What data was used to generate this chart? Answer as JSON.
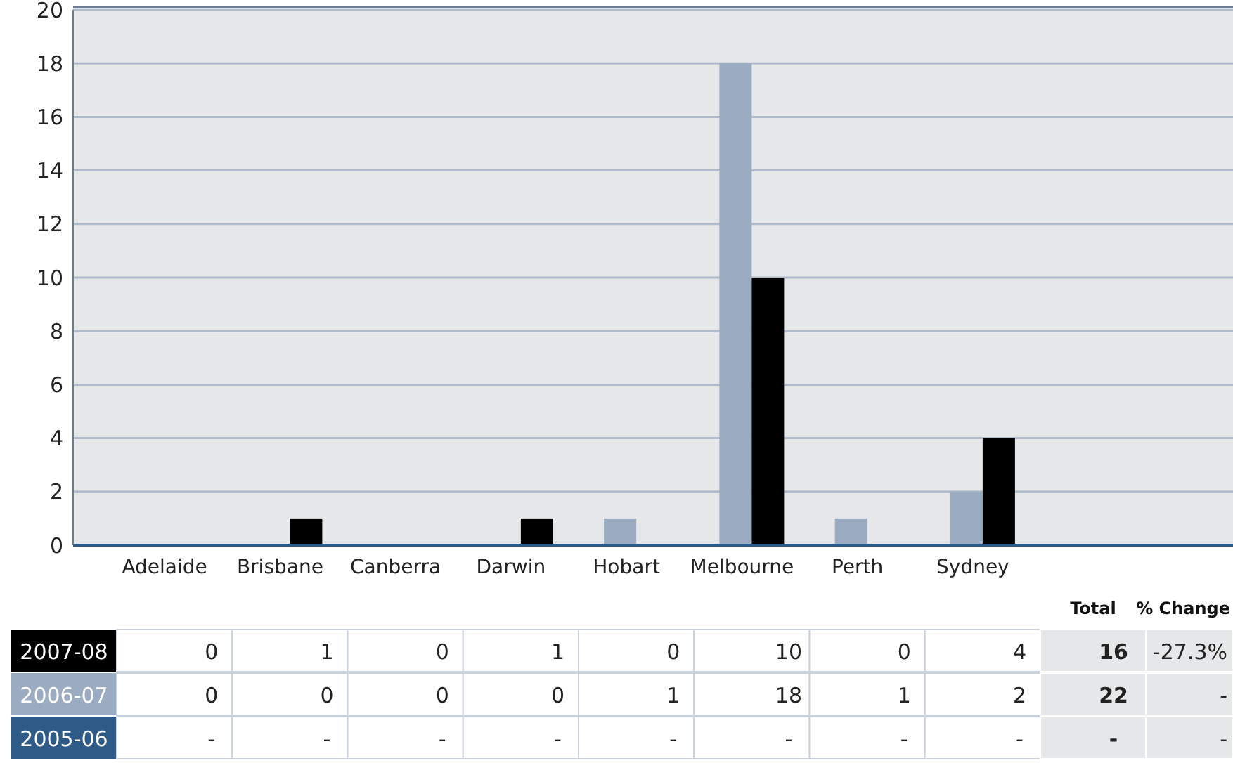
{
  "chart_data": {
    "type": "bar",
    "categories": [
      "Adelaide",
      "Brisbane",
      "Canberra",
      "Darwin",
      "Hobart",
      "Melbourne",
      "Perth",
      "Sydney"
    ],
    "series": [
      {
        "name": "2007-08",
        "color": "#000000",
        "values": [
          0,
          1,
          0,
          1,
          0,
          10,
          0,
          4
        ]
      },
      {
        "name": "2006-07",
        "color": "#9aabc2",
        "values": [
          0,
          0,
          0,
          0,
          1,
          18,
          1,
          2
        ]
      },
      {
        "name": "2005-06",
        "color": "#2e5a87",
        "values": [
          null,
          null,
          null,
          null,
          null,
          null,
          null,
          null
        ],
        "value_labels": [
          "-",
          "-",
          "-",
          "-",
          "-",
          "-",
          "-",
          "-"
        ]
      }
    ],
    "ylim": [
      0,
      20
    ],
    "yticks": [
      0,
      2,
      4,
      6,
      8,
      10,
      12,
      14,
      16,
      18,
      20
    ],
    "grid": "y",
    "data_labels": true,
    "legend": "bottom left",
    "annotations": [
      "Total",
      "% Change",
      "16",
      "-27.3%",
      "22",
      "-",
      "-",
      "-"
    ]
  }
}
